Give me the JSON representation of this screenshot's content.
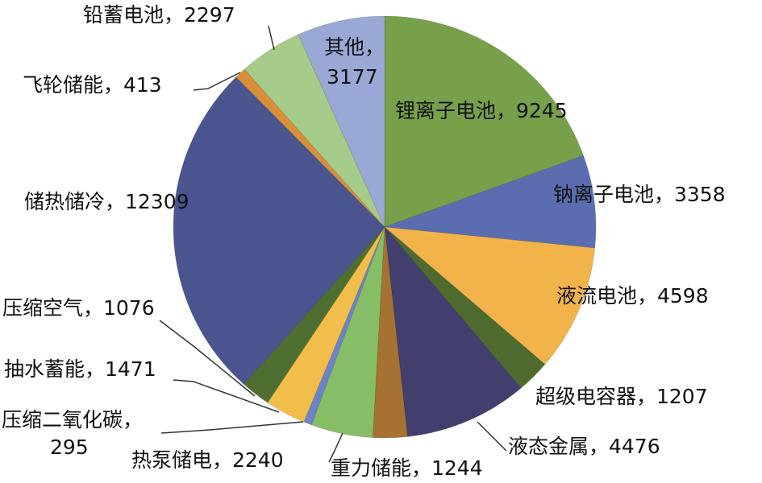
{
  "chart_data": {
    "type": "pie",
    "start": "top",
    "direction": "clockwise",
    "slices": [
      {
        "label": "锂离子电池",
        "value": 9245,
        "color": "#77a04a",
        "text": "锂离子电池，9245"
      },
      {
        "label": "钠离子电池",
        "value": 3358,
        "color": "#5b6db1",
        "text": "钠离子电池，3358"
      },
      {
        "label": "液流电池",
        "value": 4598,
        "color": "#f2b44a",
        "text": "液流电池，4598"
      },
      {
        "label": "超级电容器",
        "value": 1207,
        "color": "#4e6a2e",
        "text": "超级电容器，1207"
      },
      {
        "label": "液态金属",
        "value": 4476,
        "color": "#423e6e",
        "text": "液态金属，4476"
      },
      {
        "label": "重力储能",
        "value": 1244,
        "color": "#a57231",
        "text": "重力储能，1244"
      },
      {
        "label": "热泵储电",
        "value": 2240,
        "color": "#86bd67",
        "text": "热泵储电，2240"
      },
      {
        "label": "压缩二氧化碳",
        "value": 295,
        "color": "#6b84c8",
        "text": "压缩二氧化碳，",
        "text2": "295"
      },
      {
        "label": "抽水蓄能",
        "value": 1471,
        "color": "#f2bd4a",
        "text": "抽水蓄能，1471"
      },
      {
        "label": "压缩空气",
        "value": 1076,
        "color": "#4f6f30",
        "text": "压缩空气，1076"
      },
      {
        "label": "储热储冷",
        "value": 12309,
        "color": "#4a5590",
        "text": "储热储冷，12309"
      },
      {
        "label": "飞轮储能",
        "value": 413,
        "color": "#d98f3a",
        "text": "飞轮储能，413"
      },
      {
        "label": "铅蓄电池",
        "value": 2297,
        "color": "#a5cc8a",
        "text": "铅蓄电池，2297"
      },
      {
        "label": "其他",
        "value": 3177,
        "color": "#9aa8d6",
        "text": "其他，",
        "text2": "3177"
      }
    ]
  }
}
